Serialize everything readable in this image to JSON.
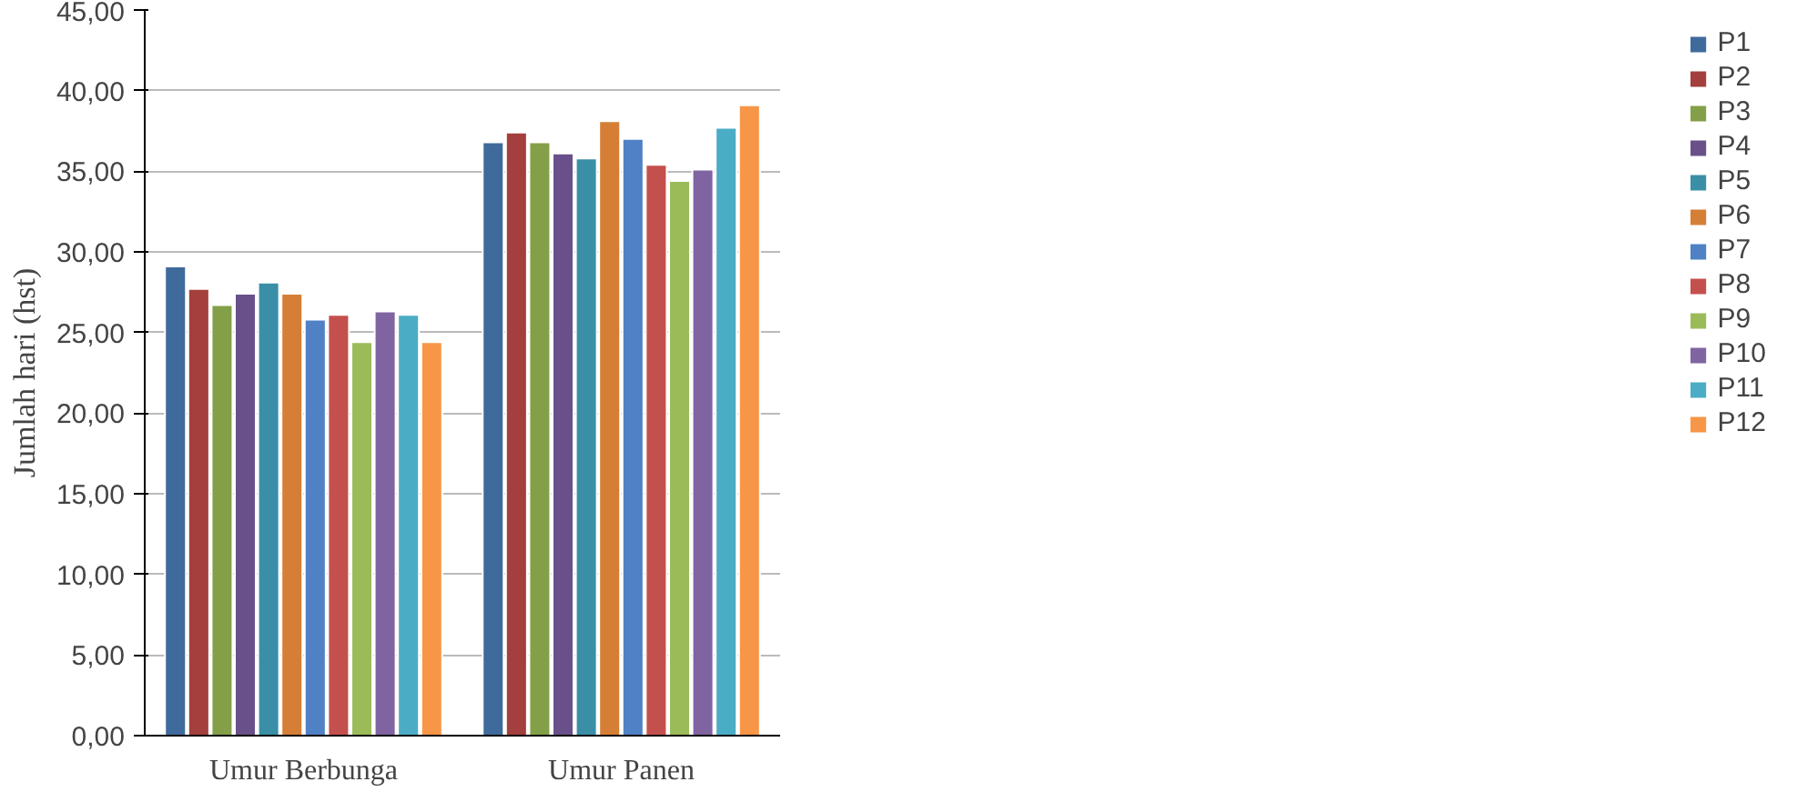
{
  "chart_data": {
    "type": "bar",
    "ylabel": "Jumlah hari (hst)",
    "categories": [
      "Umur Berbunga",
      "Umur Panen"
    ],
    "ylim": [
      0,
      45
    ],
    "yticks": [
      {
        "value": 0,
        "label": "0,00"
      },
      {
        "value": 5,
        "label": "5,00"
      },
      {
        "value": 10,
        "label": "10,00"
      },
      {
        "value": 15,
        "label": "15,00"
      },
      {
        "value": 20,
        "label": "20,00"
      },
      {
        "value": 25,
        "label": "25,00"
      },
      {
        "value": 30,
        "label": "30,00"
      },
      {
        "value": 35,
        "label": "35,00"
      },
      {
        "value": 40,
        "label": "40,00"
      },
      {
        "value": 45,
        "label": "45,00"
      }
    ],
    "grid": "y",
    "legend": "right",
    "series": [
      {
        "name": "P1",
        "color": "#3f6a9c",
        "values": [
          29.1,
          36.8
        ]
      },
      {
        "name": "P2",
        "color": "#a33f3c",
        "values": [
          27.7,
          37.4
        ]
      },
      {
        "name": "P3",
        "color": "#83a048",
        "values": [
          26.7,
          36.8
        ]
      },
      {
        "name": "P4",
        "color": "#6a508a",
        "values": [
          27.4,
          36.1
        ]
      },
      {
        "name": "P5",
        "color": "#3a8fa6",
        "values": [
          28.1,
          35.8
        ]
      },
      {
        "name": "P6",
        "color": "#d57f36",
        "values": [
          27.4,
          38.1
        ]
      },
      {
        "name": "P7",
        "color": "#4f81c4",
        "values": [
          25.8,
          37.0
        ]
      },
      {
        "name": "P8",
        "color": "#c4504d",
        "values": [
          26.1,
          35.4
        ]
      },
      {
        "name": "P9",
        "color": "#9bbb59",
        "values": [
          24.4,
          34.4
        ]
      },
      {
        "name": "P10",
        "color": "#8064a2",
        "values": [
          26.3,
          35.1
        ]
      },
      {
        "name": "P11",
        "color": "#4bacc6",
        "values": [
          26.1,
          37.7
        ]
      },
      {
        "name": "P12",
        "color": "#f79646",
        "values": [
          24.4,
          39.1
        ]
      }
    ]
  }
}
